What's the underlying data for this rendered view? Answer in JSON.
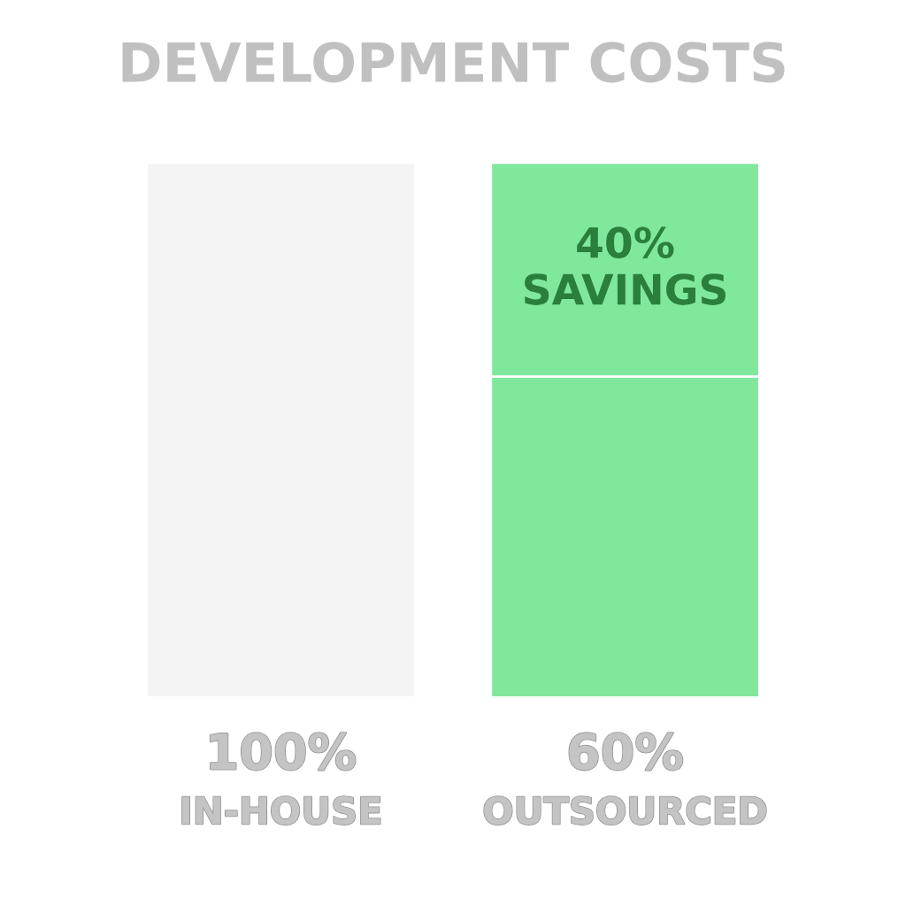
{
  "chart_data": {
    "type": "bar",
    "title": "DEVELOPMENT COSTS",
    "categories": [
      "IN-HOUSE",
      "OUTSOURCED"
    ],
    "stacked": true,
    "tick_labels": "x",
    "grid": false,
    "legend": false,
    "series": [
      {
        "colors": [
          "#f4f4f4",
          "#80e89c"
        ],
        "values": [
          100,
          60
        ],
        "value_labels": [
          "100%",
          "60%"
        ]
      },
      {
        "color": "#80e89c",
        "values": [
          null,
          40
        ],
        "value_labels": [
          null,
          "40%\nSAVINGS"
        ]
      }
    ]
  }
}
